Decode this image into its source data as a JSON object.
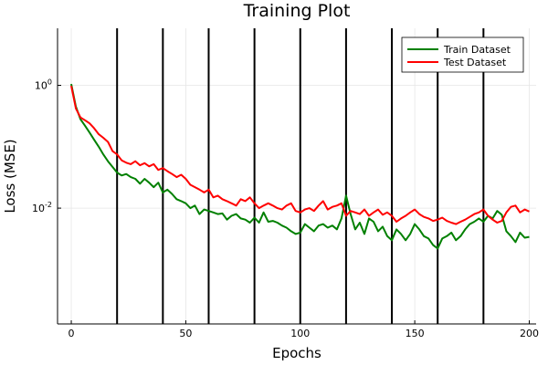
{
  "chart_data": {
    "type": "line",
    "title": "Training Plot",
    "xlabel": "Epochs",
    "ylabel": "Loss (MSE)",
    "xlim": [
      -6,
      203
    ],
    "ylim": [
      0.00013,
      8.5
    ],
    "y_scale": "log",
    "grid": true,
    "legend_position": "top-right",
    "x_ticks": [
      0,
      50,
      100,
      150,
      200
    ],
    "y_ticks": [
      {
        "value": 1,
        "label": "10",
        "exp": "0"
      },
      {
        "value": 0.01,
        "label": "10",
        "exp": "-2"
      }
    ],
    "vlines": [
      20,
      40,
      60,
      80,
      100,
      120,
      140,
      160,
      180
    ],
    "series": [
      {
        "name": "Train Dataset",
        "color": "#008000",
        "x": [
          0,
          2,
          4,
          6,
          8,
          10,
          12,
          14,
          16,
          18,
          20,
          22,
          24,
          26,
          28,
          30,
          32,
          34,
          36,
          38,
          40,
          42,
          44,
          46,
          48,
          50,
          52,
          54,
          56,
          58,
          60,
          62,
          64,
          66,
          68,
          70,
          72,
          74,
          76,
          78,
          80,
          82,
          84,
          86,
          88,
          90,
          92,
          94,
          96,
          98,
          100,
          102,
          104,
          106,
          108,
          110,
          112,
          114,
          116,
          118,
          120,
          122,
          124,
          126,
          128,
          130,
          132,
          134,
          136,
          138,
          140,
          142,
          144,
          146,
          148,
          150,
          152,
          154,
          156,
          158,
          160,
          162,
          164,
          166,
          168,
          170,
          172,
          174,
          176,
          178,
          180,
          182,
          184,
          186,
          188,
          190,
          192,
          194,
          196,
          198,
          200
        ],
        "values": [
          1.05,
          0.45,
          0.28,
          0.22,
          0.17,
          0.13,
          0.1,
          0.075,
          0.058,
          0.047,
          0.038,
          0.034,
          0.036,
          0.032,
          0.03,
          0.025,
          0.03,
          0.026,
          0.022,
          0.026,
          0.018,
          0.02,
          0.017,
          0.014,
          0.013,
          0.012,
          0.01,
          0.011,
          0.008,
          0.0095,
          0.009,
          0.0085,
          0.008,
          0.0082,
          0.0065,
          0.0075,
          0.008,
          0.0068,
          0.0065,
          0.0058,
          0.007,
          0.0058,
          0.0085,
          0.006,
          0.0062,
          0.0058,
          0.0052,
          0.0048,
          0.0042,
          0.0038,
          0.004,
          0.0055,
          0.0048,
          0.0042,
          0.0052,
          0.0055,
          0.0048,
          0.0052,
          0.0045,
          0.0068,
          0.016,
          0.008,
          0.0045,
          0.0058,
          0.0038,
          0.0068,
          0.006,
          0.0042,
          0.005,
          0.0035,
          0.003,
          0.0045,
          0.0038,
          0.003,
          0.0038,
          0.0055,
          0.0045,
          0.0035,
          0.0032,
          0.0025,
          0.0022,
          0.0032,
          0.0035,
          0.004,
          0.003,
          0.0035,
          0.0045,
          0.0055,
          0.006,
          0.0068,
          0.006,
          0.0075,
          0.0068,
          0.009,
          0.0078,
          0.0042,
          0.0035,
          0.0028,
          0.004,
          0.0033,
          0.0034
        ]
      },
      {
        "name": "Test Dataset",
        "color": "#ff0000",
        "x": [
          0,
          2,
          4,
          6,
          8,
          10,
          12,
          14,
          16,
          18,
          20,
          22,
          24,
          26,
          28,
          30,
          32,
          34,
          36,
          38,
          40,
          42,
          44,
          46,
          48,
          50,
          52,
          54,
          56,
          58,
          60,
          62,
          64,
          66,
          68,
          70,
          72,
          74,
          76,
          78,
          80,
          82,
          84,
          86,
          88,
          90,
          92,
          94,
          96,
          98,
          100,
          102,
          104,
          106,
          108,
          110,
          112,
          114,
          116,
          118,
          120,
          122,
          124,
          126,
          128,
          130,
          132,
          134,
          136,
          138,
          140,
          142,
          144,
          146,
          148,
          150,
          152,
          154,
          156,
          158,
          160,
          162,
          164,
          166,
          168,
          170,
          172,
          174,
          176,
          178,
          180,
          182,
          184,
          186,
          188,
          190,
          192,
          194,
          196,
          198,
          200
        ],
        "values": [
          0.98,
          0.42,
          0.3,
          0.27,
          0.24,
          0.2,
          0.16,
          0.14,
          0.12,
          0.085,
          0.075,
          0.06,
          0.055,
          0.052,
          0.058,
          0.05,
          0.054,
          0.048,
          0.052,
          0.042,
          0.045,
          0.04,
          0.036,
          0.032,
          0.035,
          0.03,
          0.024,
          0.022,
          0.02,
          0.018,
          0.02,
          0.015,
          0.016,
          0.014,
          0.013,
          0.012,
          0.011,
          0.014,
          0.013,
          0.015,
          0.012,
          0.01,
          0.011,
          0.012,
          0.011,
          0.01,
          0.0095,
          0.011,
          0.012,
          0.009,
          0.0085,
          0.0095,
          0.01,
          0.009,
          0.011,
          0.013,
          0.0095,
          0.0105,
          0.011,
          0.012,
          0.0075,
          0.009,
          0.0085,
          0.008,
          0.0095,
          0.0075,
          0.0085,
          0.0095,
          0.0078,
          0.0085,
          0.0075,
          0.006,
          0.0068,
          0.0075,
          0.0085,
          0.0095,
          0.008,
          0.0072,
          0.0068,
          0.0062,
          0.0065,
          0.007,
          0.0062,
          0.0058,
          0.0055,
          0.006,
          0.0065,
          0.0072,
          0.008,
          0.0085,
          0.0095,
          0.0075,
          0.0065,
          0.0058,
          0.0062,
          0.0085,
          0.0105,
          0.011,
          0.0085,
          0.0095,
          0.0088
        ]
      }
    ]
  }
}
